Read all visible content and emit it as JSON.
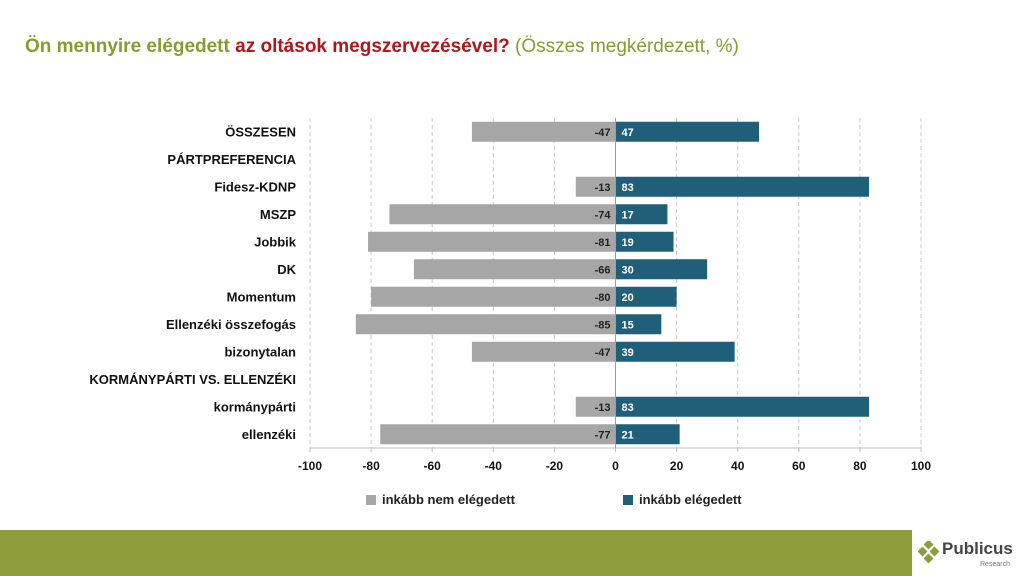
{
  "title": {
    "part1": "Ön mennyire elégedett ",
    "part2": "az oltások megszervezésével?",
    "part3": " (Összes megkérdezett, %)"
  },
  "colors": {
    "negative": "#a6a6a6",
    "positive": "#1f5f7a",
    "title_green": "#8a9a2f",
    "title_red": "#b0161c",
    "footer": "#8f9e3b"
  },
  "chart_data": {
    "type": "bar",
    "orientation": "horizontal-diverging",
    "categories": [
      "ÖSSZESEN",
      "PÁRTPREFERENCIA",
      "Fidesz-KDNP",
      "MSZP",
      "Jobbik",
      "DK",
      "Momentum",
      "Ellenzéki összefogás",
      "bizonytalan",
      "KORMÁNYPÁRTI VS. ELLENZÉKI",
      "kormánypárti",
      "ellenzéki"
    ],
    "series": [
      {
        "name": "inkább nem elégedett",
        "values": [
          -47,
          null,
          -13,
          -74,
          -81,
          -66,
          -80,
          -85,
          -47,
          null,
          -13,
          -77
        ]
      },
      {
        "name": "inkább elégedett",
        "values": [
          47,
          null,
          83,
          17,
          19,
          30,
          20,
          15,
          39,
          null,
          83,
          21
        ]
      }
    ],
    "xlim": [
      -100,
      100
    ],
    "xticks": [
      -100,
      -80,
      -60,
      -40,
      -20,
      0,
      20,
      40,
      60,
      80,
      100
    ],
    "grid": true,
    "legend_position": "bottom"
  },
  "logo": {
    "name": "Publicus",
    "sub": "Research"
  }
}
